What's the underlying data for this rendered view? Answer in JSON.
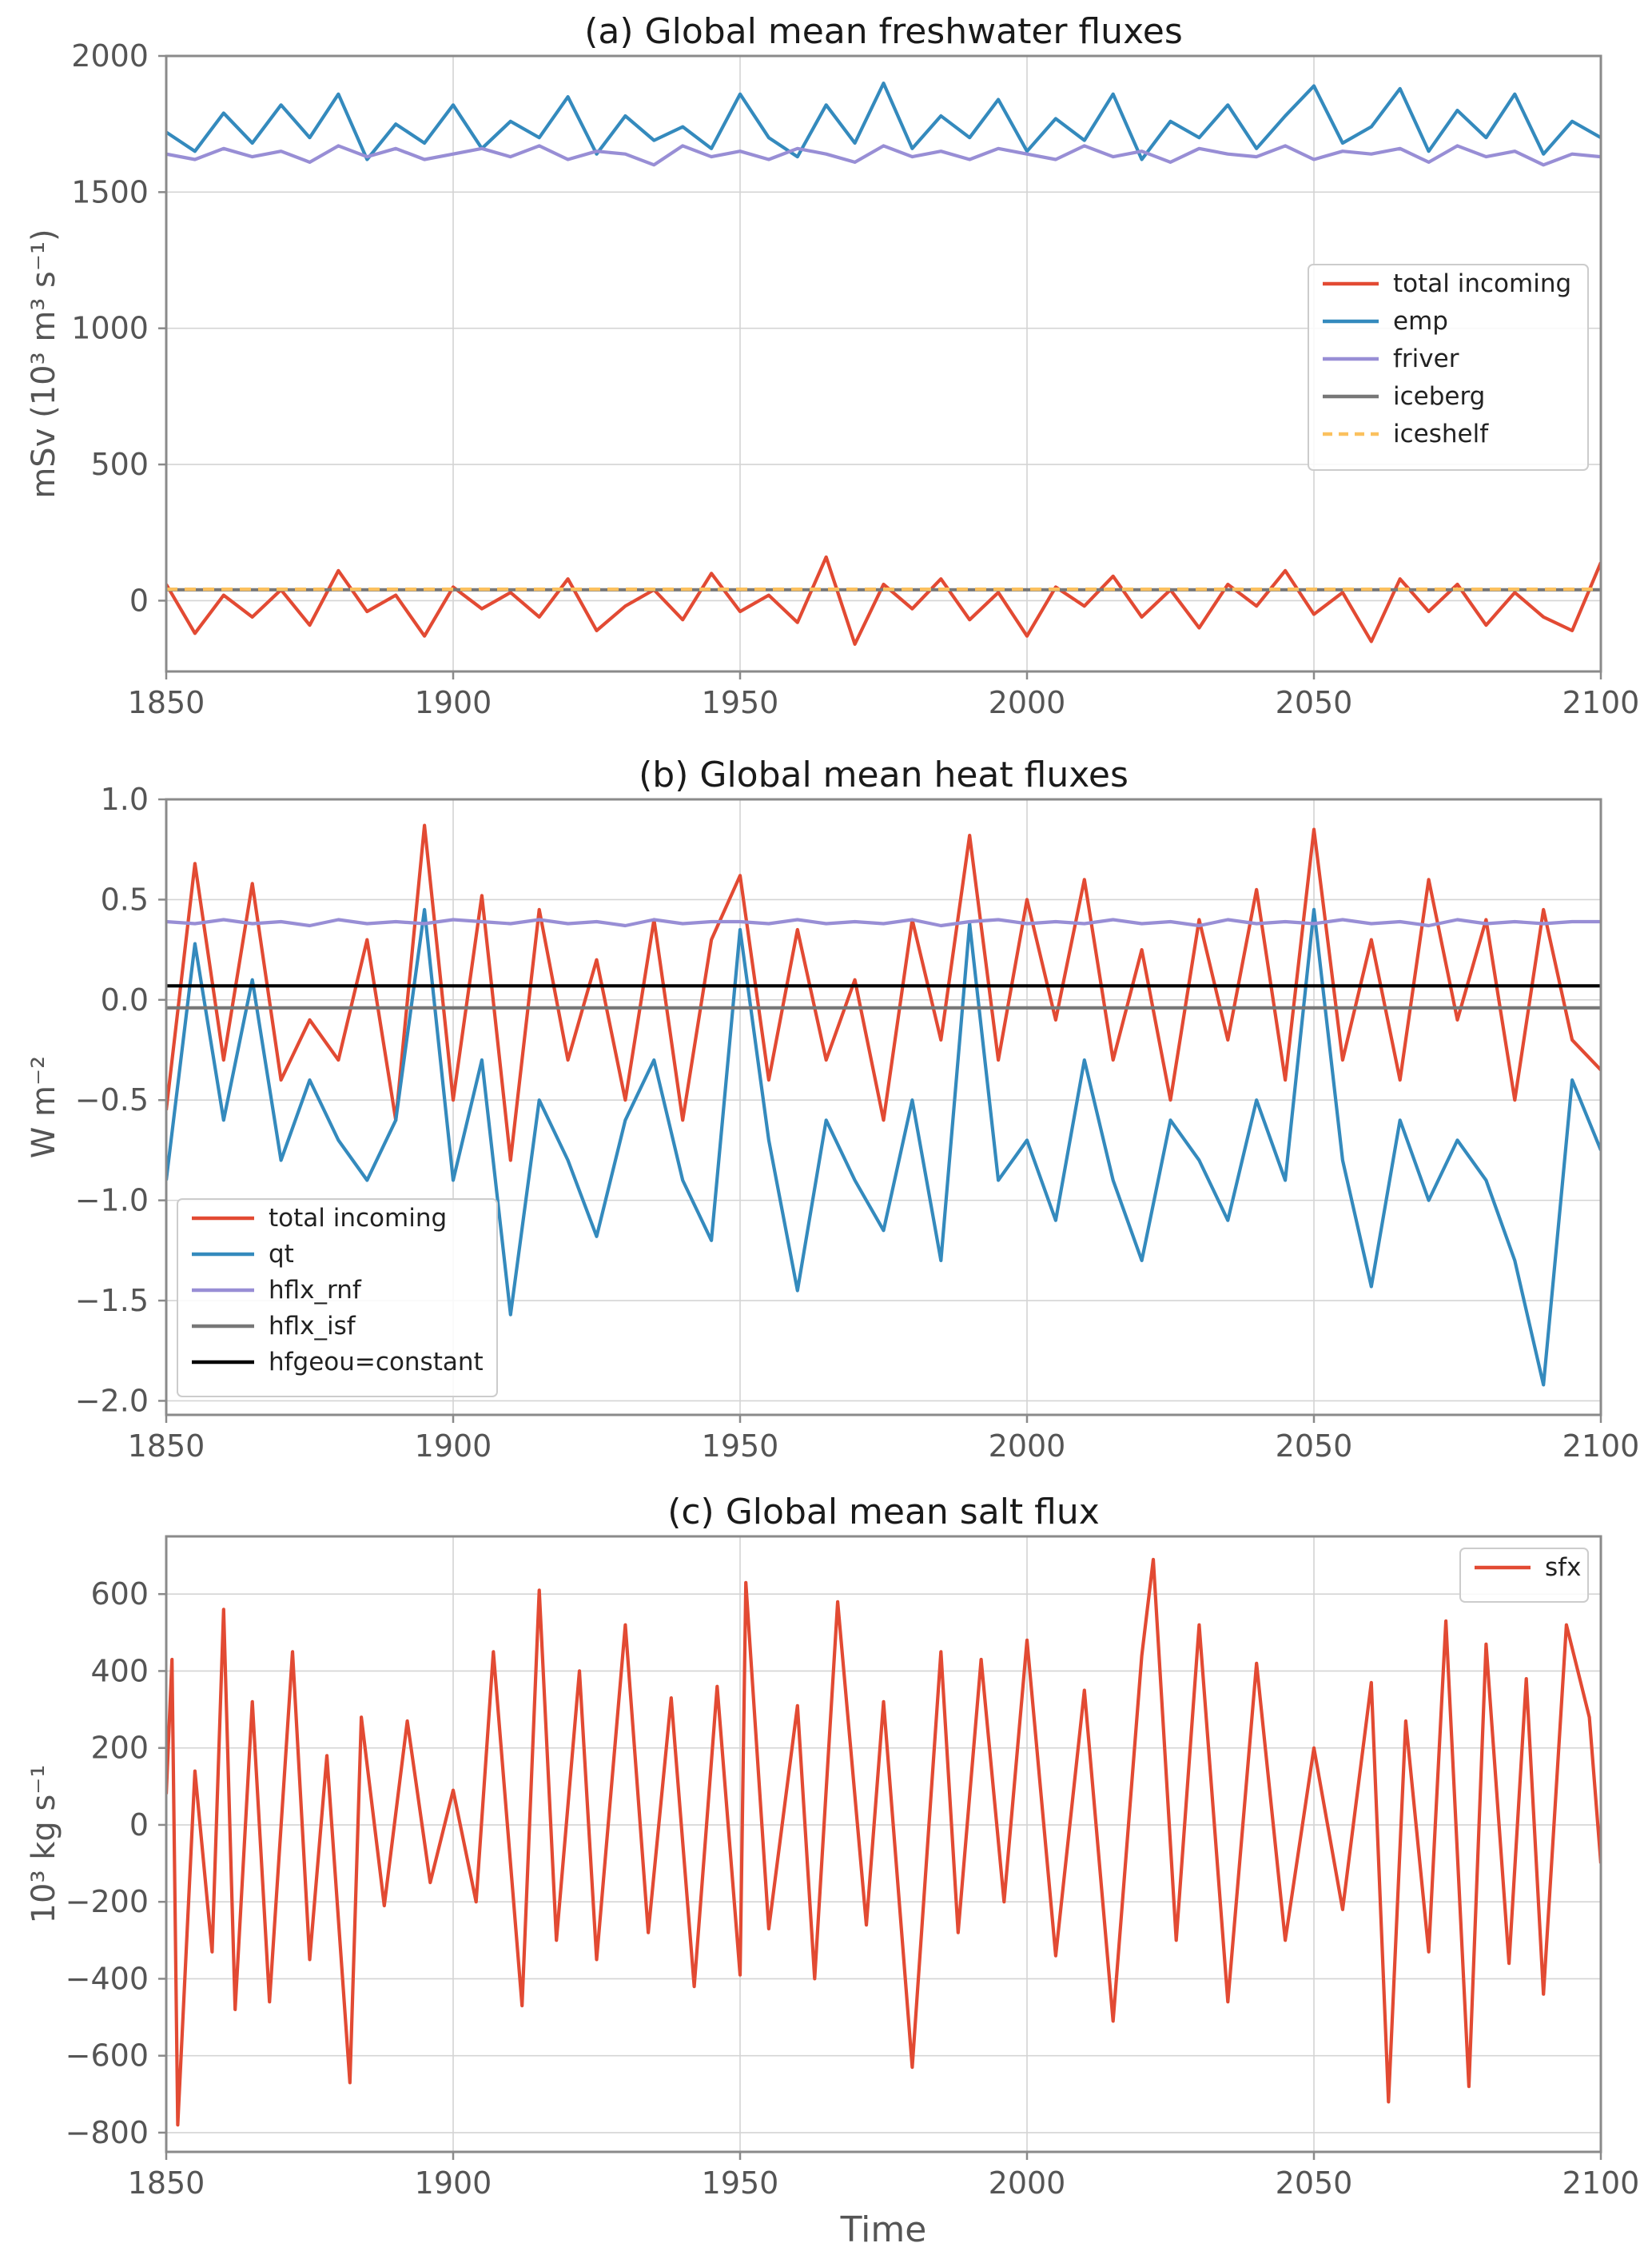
{
  "figure": {
    "xlabel": "Time"
  },
  "chart_data": [
    {
      "type": "line",
      "title": "(a) Global mean freshwater fluxes",
      "xlabel": "",
      "ylabel": "mSv (10³ m³ s⁻¹)",
      "xlim": [
        1850,
        2100
      ],
      "ylim": [
        -260,
        2000
      ],
      "xticks": [
        "1850",
        "1900",
        "1950",
        "2000",
        "2050",
        "2100"
      ],
      "yticks": [
        {
          "value": 0,
          "label": "0"
        },
        {
          "value": 500,
          "label": "500"
        },
        {
          "value": 1000,
          "label": "1000"
        },
        {
          "value": 1500,
          "label": "1500"
        },
        {
          "value": 2000,
          "label": "2000"
        }
      ],
      "grid": true,
      "legend": "center-right",
      "x": [
        1850,
        1855,
        1860,
        1865,
        1870,
        1875,
        1880,
        1885,
        1890,
        1895,
        1900,
        1905,
        1910,
        1915,
        1920,
        1925,
        1930,
        1935,
        1940,
        1945,
        1950,
        1955,
        1960,
        1965,
        1970,
        1975,
        1980,
        1985,
        1990,
        1995,
        2000,
        2005,
        2010,
        2015,
        2020,
        2025,
        2030,
        2035,
        2040,
        2045,
        2050,
        2055,
        2060,
        2065,
        2070,
        2075,
        2080,
        2085,
        2090,
        2095,
        2100
      ],
      "series": [
        {
          "name": "total incoming",
          "color": "#e24a33",
          "dash": "",
          "values": [
            60,
            -120,
            20,
            -60,
            40,
            -90,
            110,
            -40,
            20,
            -130,
            50,
            -30,
            30,
            -60,
            80,
            -110,
            -20,
            40,
            -70,
            100,
            -40,
            20,
            -80,
            160,
            -160,
            60,
            -30,
            80,
            -70,
            30,
            -130,
            50,
            -20,
            90,
            -60,
            40,
            -100,
            60,
            -20,
            110,
            -50,
            30,
            -150,
            80,
            -40,
            60,
            -90,
            30,
            -60,
            -110,
            140
          ]
        },
        {
          "name": "emp",
          "color": "#348abd",
          "dash": "",
          "values": [
            1720,
            1650,
            1790,
            1680,
            1820,
            1700,
            1860,
            1620,
            1750,
            1680,
            1820,
            1660,
            1760,
            1700,
            1850,
            1640,
            1780,
            1690,
            1740,
            1660,
            1860,
            1700,
            1630,
            1820,
            1680,
            1900,
            1660,
            1780,
            1700,
            1840,
            1650,
            1770,
            1690,
            1860,
            1620,
            1760,
            1700,
            1820,
            1660,
            1780,
            1890,
            1680,
            1740,
            1880,
            1650,
            1800,
            1700,
            1860,
            1640,
            1760,
            1700
          ]
        },
        {
          "name": "friver",
          "color": "#988ed5",
          "dash": "",
          "values": [
            1640,
            1620,
            1660,
            1630,
            1650,
            1610,
            1670,
            1630,
            1660,
            1620,
            1640,
            1660,
            1630,
            1670,
            1620,
            1650,
            1640,
            1600,
            1670,
            1630,
            1650,
            1620,
            1660,
            1640,
            1610,
            1670,
            1630,
            1650,
            1620,
            1660,
            1640,
            1620,
            1670,
            1630,
            1650,
            1610,
            1660,
            1640,
            1630,
            1670,
            1620,
            1650,
            1640,
            1660,
            1610,
            1670,
            1630,
            1650,
            1600,
            1640,
            1630
          ]
        },
        {
          "name": "iceberg",
          "color": "#777777",
          "dash": "",
          "values": [
            40,
            40,
            40,
            40,
            40,
            40,
            40,
            40,
            40,
            40,
            40,
            40,
            40,
            40,
            40,
            40,
            40,
            40,
            40,
            40,
            40,
            40,
            40,
            40,
            40,
            40,
            40,
            40,
            40,
            40,
            40,
            40,
            40,
            40,
            40,
            40,
            40,
            40,
            40,
            40,
            40,
            40,
            40,
            40,
            40,
            40,
            40,
            40,
            40,
            40,
            40
          ]
        },
        {
          "name": "iceshelf",
          "color": "#fbc15e",
          "dash": "14,9",
          "values": [
            42,
            42,
            42,
            42,
            42,
            42,
            42,
            42,
            42,
            42,
            42,
            42,
            42,
            42,
            42,
            42,
            42,
            42,
            42,
            42,
            42,
            42,
            42,
            42,
            42,
            42,
            42,
            42,
            42,
            42,
            42,
            42,
            42,
            42,
            42,
            42,
            42,
            42,
            42,
            42,
            42,
            42,
            42,
            42,
            42,
            42,
            42,
            42,
            42,
            42,
            42
          ]
        }
      ]
    },
    {
      "type": "line",
      "title": "(b) Global mean heat fluxes",
      "xlabel": "",
      "ylabel": "W m⁻²",
      "xlim": [
        1850,
        2100
      ],
      "ylim": [
        -2.07,
        1.0
      ],
      "xticks": [
        "1850",
        "1900",
        "1950",
        "2000",
        "2050",
        "2100"
      ],
      "yticks": [
        {
          "value": 1.0,
          "label": "1.0"
        },
        {
          "value": 0.5,
          "label": "0.5"
        },
        {
          "value": 0.0,
          "label": "0.0"
        },
        {
          "value": -0.5,
          "label": "−0.5"
        },
        {
          "value": -1.0,
          "label": "−1.0"
        },
        {
          "value": -1.5,
          "label": "−1.5"
        },
        {
          "value": -2.0,
          "label": "−2.0"
        }
      ],
      "grid": true,
      "legend": "lower-left",
      "x": [
        1850,
        1855,
        1860,
        1865,
        1870,
        1875,
        1880,
        1885,
        1890,
        1895,
        1900,
        1905,
        1910,
        1915,
        1920,
        1925,
        1930,
        1935,
        1940,
        1945,
        1950,
        1955,
        1960,
        1965,
        1970,
        1975,
        1980,
        1985,
        1990,
        1995,
        2000,
        2005,
        2010,
        2015,
        2020,
        2025,
        2030,
        2035,
        2040,
        2045,
        2050,
        2055,
        2060,
        2065,
        2070,
        2075,
        2080,
        2085,
        2090,
        2095,
        2100
      ],
      "series": [
        {
          "name": "total incoming",
          "color": "#e24a33",
          "dash": "",
          "values": [
            -0.55,
            0.68,
            -0.3,
            0.58,
            -0.4,
            -0.1,
            -0.3,
            0.3,
            -0.6,
            0.87,
            -0.5,
            0.52,
            -0.8,
            0.45,
            -0.3,
            0.2,
            -0.5,
            0.4,
            -0.6,
            0.3,
            0.62,
            -0.4,
            0.35,
            -0.3,
            0.1,
            -0.6,
            0.4,
            -0.2,
            0.82,
            -0.3,
            0.5,
            -0.1,
            0.6,
            -0.3,
            0.25,
            -0.5,
            0.4,
            -0.2,
            0.55,
            -0.4,
            0.85,
            -0.3,
            0.3,
            -0.4,
            0.6,
            -0.1,
            0.4,
            -0.5,
            0.45,
            -0.2,
            -0.35
          ]
        },
        {
          "name": "qt",
          "color": "#348abd",
          "dash": "",
          "values": [
            -0.9,
            0.28,
            -0.6,
            0.1,
            -0.8,
            -0.4,
            -0.7,
            -0.9,
            -0.6,
            0.45,
            -0.9,
            -0.3,
            -1.57,
            -0.5,
            -0.8,
            -1.18,
            -0.6,
            -0.3,
            -0.9,
            -1.2,
            0.35,
            -0.7,
            -1.45,
            -0.6,
            -0.9,
            -1.15,
            -0.5,
            -1.3,
            0.38,
            -0.9,
            -0.7,
            -1.1,
            -0.3,
            -0.9,
            -1.3,
            -0.6,
            -0.8,
            -1.1,
            -0.5,
            -0.9,
            0.45,
            -0.8,
            -1.43,
            -0.6,
            -1.0,
            -0.7,
            -0.9,
            -1.3,
            -1.92,
            -0.4,
            -0.75
          ]
        },
        {
          "name": "hflx_rnf",
          "color": "#988ed5",
          "dash": "",
          "values": [
            0.39,
            0.38,
            0.4,
            0.38,
            0.39,
            0.37,
            0.4,
            0.38,
            0.39,
            0.38,
            0.4,
            0.39,
            0.38,
            0.4,
            0.38,
            0.39,
            0.37,
            0.4,
            0.38,
            0.39,
            0.39,
            0.38,
            0.4,
            0.38,
            0.39,
            0.38,
            0.4,
            0.37,
            0.39,
            0.4,
            0.38,
            0.39,
            0.38,
            0.4,
            0.38,
            0.39,
            0.37,
            0.4,
            0.38,
            0.39,
            0.38,
            0.4,
            0.38,
            0.39,
            0.37,
            0.4,
            0.38,
            0.39,
            0.38,
            0.39,
            0.39
          ]
        },
        {
          "name": "hflx_isf",
          "color": "#777777",
          "dash": "",
          "values": [
            -0.04,
            -0.04,
            -0.04,
            -0.04,
            -0.04,
            -0.04,
            -0.04,
            -0.04,
            -0.04,
            -0.04,
            -0.04,
            -0.04,
            -0.04,
            -0.04,
            -0.04,
            -0.04,
            -0.04,
            -0.04,
            -0.04,
            -0.04,
            -0.04,
            -0.04,
            -0.04,
            -0.04,
            -0.04,
            -0.04,
            -0.04,
            -0.04,
            -0.04,
            -0.04,
            -0.04,
            -0.04,
            -0.04,
            -0.04,
            -0.04,
            -0.04,
            -0.04,
            -0.04,
            -0.04,
            -0.04,
            -0.04,
            -0.04,
            -0.04,
            -0.04,
            -0.04,
            -0.04,
            -0.04,
            -0.04,
            -0.04,
            -0.04,
            -0.04
          ]
        },
        {
          "name": "hfgeou=constant",
          "color": "#000000",
          "dash": "",
          "values": [
            0.07,
            0.07,
            0.07,
            0.07,
            0.07,
            0.07,
            0.07,
            0.07,
            0.07,
            0.07,
            0.07,
            0.07,
            0.07,
            0.07,
            0.07,
            0.07,
            0.07,
            0.07,
            0.07,
            0.07,
            0.07,
            0.07,
            0.07,
            0.07,
            0.07,
            0.07,
            0.07,
            0.07,
            0.07,
            0.07,
            0.07,
            0.07,
            0.07,
            0.07,
            0.07,
            0.07,
            0.07,
            0.07,
            0.07,
            0.07,
            0.07,
            0.07,
            0.07,
            0.07,
            0.07,
            0.07,
            0.07,
            0.07,
            0.07,
            0.07,
            0.07
          ]
        }
      ]
    },
    {
      "type": "line",
      "title": "(c) Global mean salt flux",
      "xlabel": "Time",
      "ylabel": "10³ kg s⁻¹",
      "xlim": [
        1850,
        2100
      ],
      "ylim": [
        -850,
        750
      ],
      "xticks": [
        "1850",
        "1900",
        "1950",
        "2000",
        "2050",
        "2100"
      ],
      "yticks": [
        {
          "value": 600,
          "label": "600"
        },
        {
          "value": 400,
          "label": "400"
        },
        {
          "value": 200,
          "label": "200"
        },
        {
          "value": 0,
          "label": "0"
        },
        {
          "value": -200,
          "label": "−200"
        },
        {
          "value": -400,
          "label": "−400"
        },
        {
          "value": -600,
          "label": "−600"
        },
        {
          "value": -800,
          "label": "−800"
        }
      ],
      "grid": true,
      "legend": "top-right",
      "x": [
        1850,
        1851,
        1852,
        1855,
        1858,
        1860,
        1862,
        1865,
        1868,
        1872,
        1875,
        1878,
        1882,
        1884,
        1888,
        1892,
        1896,
        1900,
        1904,
        1907,
        1912,
        1915,
        1918,
        1922,
        1925,
        1930,
        1934,
        1938,
        1942,
        1946,
        1950,
        1951,
        1955,
        1960,
        1963,
        1967,
        1972,
        1975,
        1980,
        1985,
        1988,
        1992,
        1996,
        2000,
        2005,
        2010,
        2015,
        2020,
        2022,
        2026,
        2030,
        2035,
        2040,
        2045,
        2050,
        2055,
        2060,
        2063,
        2066,
        2070,
        2073,
        2077,
        2080,
        2084,
        2087,
        2090,
        2094,
        2098,
        2100
      ],
      "series": [
        {
          "name": "sfx",
          "color": "#e24a33",
          "dash": "",
          "values": [
            80,
            430,
            -780,
            140,
            -330,
            560,
            -480,
            320,
            -460,
            450,
            -350,
            180,
            -670,
            280,
            -210,
            270,
            -150,
            90,
            -200,
            450,
            -470,
            610,
            -300,
            400,
            -350,
            520,
            -280,
            330,
            -420,
            360,
            -390,
            630,
            -270,
            310,
            -400,
            580,
            -260,
            320,
            -630,
            450,
            -280,
            430,
            -200,
            480,
            -340,
            350,
            -510,
            440,
            690,
            -300,
            520,
            -460,
            420,
            -300,
            200,
            -220,
            370,
            -720,
            270,
            -330,
            530,
            -680,
            470,
            -360,
            380,
            -440,
            520,
            280,
            -100
          ]
        }
      ]
    }
  ]
}
